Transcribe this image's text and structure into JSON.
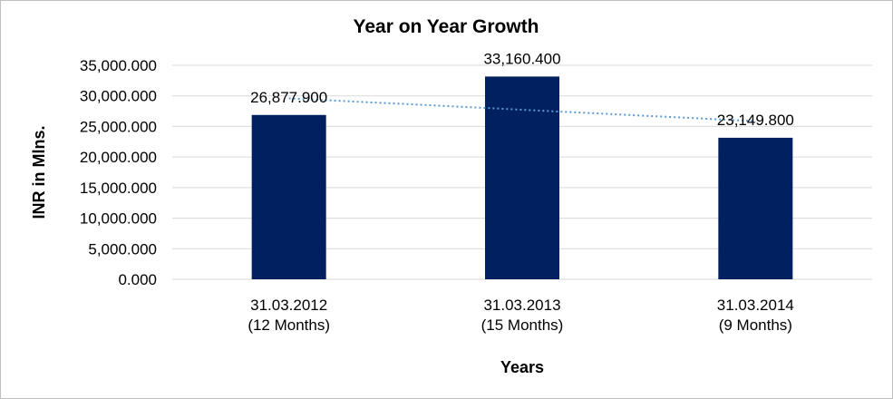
{
  "chart_data": {
    "type": "bar",
    "title": "Year on Year Growth",
    "xlabel": "Years",
    "ylabel": "INR in Mlns.",
    "categories": [
      [
        "31.03.2012",
        "(12 Months)"
      ],
      [
        "31.03.2013",
        "(15 Months)"
      ],
      [
        "31.03.2014",
        "(9 Months)"
      ]
    ],
    "values": [
      26877.9,
      33160.4,
      23149.8
    ],
    "value_labels": [
      "26,877.900",
      "33,160.400",
      "23,149.800"
    ],
    "ylim": [
      0,
      35000
    ],
    "yticks": [
      0,
      5000,
      10000,
      15000,
      20000,
      25000,
      30000,
      35000
    ],
    "ytick_labels": [
      "0.000",
      "5,000.000",
      "10,000.000",
      "15,000.000",
      "20,000.000",
      "25,000.000",
      "30,000.000",
      "35,000.000"
    ],
    "grid": true,
    "trendline": {
      "type": "linear",
      "style": "dotted"
    },
    "colors": {
      "bar": "#002060",
      "trendline": "#5b9bd5",
      "grid": "#d9d9d9"
    }
  }
}
